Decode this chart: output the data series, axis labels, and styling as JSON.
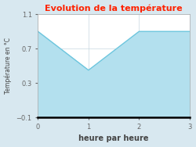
{
  "title": "Evolution de la température",
  "xlabel": "heure par heure",
  "ylabel": "Température en °C",
  "x": [
    0,
    1,
    2,
    3
  ],
  "y": [
    0.9,
    0.45,
    0.9,
    0.9
  ],
  "ylim": [
    -0.1,
    1.1
  ],
  "xlim": [
    0,
    3
  ],
  "xticks": [
    0,
    1,
    2,
    3
  ],
  "yticks": [
    -0.1,
    0.3,
    0.7,
    1.1
  ],
  "line_color": "#6ec6de",
  "fill_color": "#b3e0ee",
  "title_color": "#ff2200",
  "bg_color": "#d8e8f0",
  "plot_bg_color": "#ffffff",
  "grid_color": "#c8d8e0",
  "axis_label_color": "#444444",
  "tick_label_color": "#666666",
  "spine_color": "#aaaaaa",
  "bottom_spine_color": "#000000"
}
